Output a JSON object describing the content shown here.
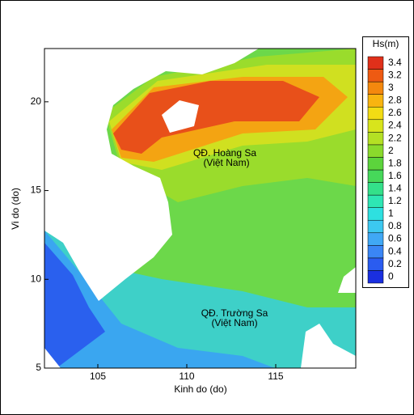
{
  "chart_data": {
    "type": "contour",
    "xlabel": "Kinh do (do)",
    "ylabel": "Vi do (do)",
    "xlim": [
      102,
      119.5
    ],
    "ylim": [
      5,
      23
    ],
    "xticks": [
      105,
      110,
      115
    ],
    "yticks": [
      5,
      10,
      15,
      20
    ],
    "colorbar": {
      "title": "Hs(m)",
      "levels": [
        0,
        0.2,
        0.4,
        0.6,
        0.8,
        1,
        1.2,
        1.4,
        1.6,
        1.8,
        2,
        2.2,
        2.4,
        2.6,
        2.8,
        3,
        3.2,
        3.4
      ],
      "colors": [
        "#1a2fe0",
        "#2a5cf0",
        "#3a86f5",
        "#40a8f5",
        "#3cc8f0",
        "#2ee0e0",
        "#2ee6b4",
        "#34e08a",
        "#46d85a",
        "#5cd43c",
        "#8ada2c",
        "#b4e024",
        "#d8e41c",
        "#f2dc14",
        "#f8b410",
        "#f4880e",
        "#ee5a12",
        "#e0301a"
      ]
    },
    "annotations": [
      "QĐ. Hoàng Sa",
      "(Việt Nam)",
      "QĐ. Trường Sa",
      "(Việt Nam)"
    ]
  }
}
